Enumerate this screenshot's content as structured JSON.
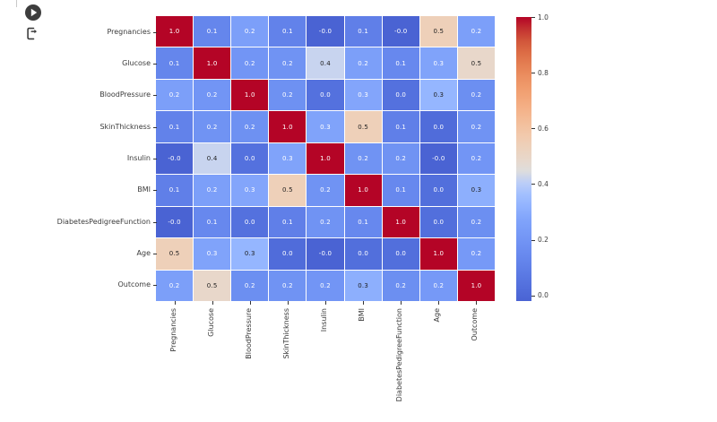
{
  "toolbar": {
    "icons": [
      {
        "name": "play-icon",
        "glyph": "circled right-pointing triangle",
        "color": "#3d3d3d"
      },
      {
        "name": "export-icon",
        "glyph": "bracket with right arrow",
        "color": "#3d3d3d"
      }
    ]
  },
  "chart_data": {
    "type": "heatmap",
    "title": "",
    "xlabel": "",
    "ylabel": "",
    "categories": [
      "Pregnancies",
      "Glucose",
      "BloodPressure",
      "SkinThickness",
      "Insulin",
      "BMI",
      "DiabetesPedigreeFunction",
      "Age",
      "Outcome"
    ],
    "values": [
      [
        1.0,
        0.13,
        0.25,
        0.11,
        -0.02,
        0.1,
        -0.02,
        0.54,
        0.25
      ],
      [
        0.13,
        1.0,
        0.2,
        0.19,
        0.42,
        0.25,
        0.14,
        0.27,
        0.49
      ],
      [
        0.25,
        0.2,
        1.0,
        0.18,
        0.04,
        0.28,
        0.04,
        0.33,
        0.17
      ],
      [
        0.11,
        0.19,
        0.18,
        1.0,
        0.27,
        0.54,
        0.1,
        0.02,
        0.19
      ],
      [
        -0.02,
        0.42,
        0.04,
        0.27,
        1.0,
        0.19,
        0.19,
        -0.02,
        0.2
      ],
      [
        0.1,
        0.25,
        0.28,
        0.54,
        0.19,
        1.0,
        0.14,
        0.03,
        0.31
      ],
      [
        -0.02,
        0.14,
        0.04,
        0.1,
        0.19,
        0.14,
        1.0,
        0.03,
        0.17
      ],
      [
        0.54,
        0.27,
        0.33,
        0.02,
        -0.02,
        0.03,
        0.03,
        1.0,
        0.22
      ],
      [
        0.25,
        0.49,
        0.17,
        0.19,
        0.2,
        0.31,
        0.17,
        0.22,
        1.0
      ]
    ],
    "cell_labels": [
      [
        "1.0",
        "0.1",
        "0.2",
        "0.1",
        "-0.0",
        "0.1",
        "-0.0",
        "0.5",
        "0.2"
      ],
      [
        "0.1",
        "1.0",
        "0.2",
        "0.2",
        "0.4",
        "0.2",
        "0.1",
        "0.3",
        "0.5"
      ],
      [
        "0.2",
        "0.2",
        "1.0",
        "0.2",
        "0.0",
        "0.3",
        "0.0",
        "0.3",
        "0.2"
      ],
      [
        "0.1",
        "0.2",
        "0.2",
        "1.0",
        "0.3",
        "0.5",
        "0.1",
        "0.0",
        "0.2"
      ],
      [
        "-0.0",
        "0.4",
        "0.0",
        "0.3",
        "1.0",
        "0.2",
        "0.2",
        "-0.0",
        "0.2"
      ],
      [
        "0.1",
        "0.2",
        "0.3",
        "0.5",
        "0.2",
        "1.0",
        "0.1",
        "0.0",
        "0.3"
      ],
      [
        "-0.0",
        "0.1",
        "0.0",
        "0.1",
        "0.2",
        "0.1",
        "1.0",
        "0.0",
        "0.2"
      ],
      [
        "0.5",
        "0.3",
        "0.3",
        "0.0",
        "-0.0",
        "0.0",
        "0.0",
        "1.0",
        "0.2"
      ],
      [
        "0.2",
        "0.5",
        "0.2",
        "0.2",
        "0.2",
        "0.3",
        "0.2",
        "0.2",
        "1.0"
      ]
    ],
    "colormap": "coolwarm",
    "colormap_low_color": "#3b4cc0",
    "colormap_mid_color": "#dddddd",
    "colormap_high_color": "#b40426",
    "grid_line_color": "#ffffff",
    "annot_text_light": "#ffffff",
    "annot_text_dark": "#1e1e1e",
    "legend_position": "right",
    "colorbar_ticks": [
      "1.0",
      "0.8",
      "0.6",
      "0.4",
      "0.2",
      "0.0"
    ],
    "colorbar_tick_values": [
      1.0,
      0.8,
      0.6,
      0.4,
      0.2,
      0.0
    ],
    "colorbar_range": [
      -0.02,
      1.0
    ],
    "color_norm_range": [
      -0.11,
      1.0
    ]
  }
}
